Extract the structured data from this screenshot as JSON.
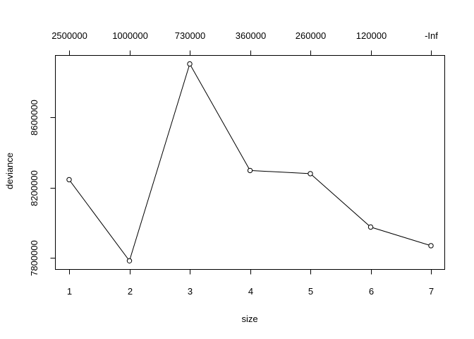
{
  "chart_data": {
    "type": "line",
    "xlabel": "size",
    "ylabel": "deviance",
    "x": [
      1,
      2,
      3,
      4,
      5,
      6,
      7
    ],
    "y": [
      8245000,
      7783000,
      8904000,
      8297000,
      8279000,
      7975000,
      7869000
    ],
    "xlim": [
      1,
      7
    ],
    "ylim": [
      7780000,
      8910000
    ],
    "x_ticks": [
      "1",
      "2",
      "3",
      "4",
      "5",
      "6",
      "7"
    ],
    "y_ticks": [
      {
        "value": 7800000,
        "label": "7800000"
      },
      {
        "value": 8200000,
        "label": "8200000"
      },
      {
        "value": 8600000,
        "label": "8600000"
      }
    ],
    "top_axis_ticks": [
      "2500000",
      "1000000",
      "730000",
      "360000",
      "260000",
      "120000",
      "-Inf"
    ],
    "grid": false,
    "legend": "none",
    "line_color": "#000000",
    "marker": "open-circle"
  }
}
